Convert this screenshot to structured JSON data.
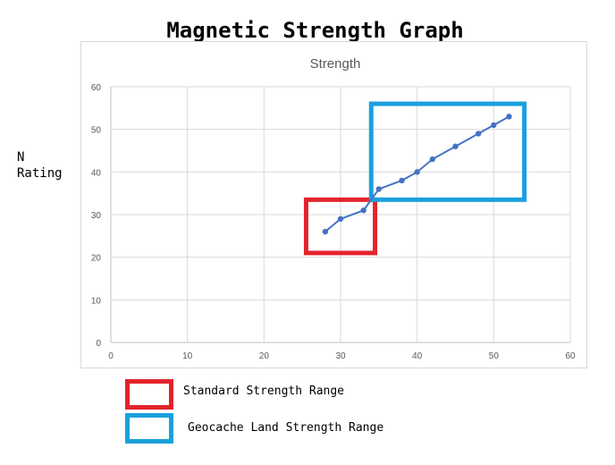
{
  "page": {
    "title": "Magnetic Strength Graph",
    "side_label": "N\nRating"
  },
  "legend": [
    {
      "label": "Standard Strength Range",
      "color": "#e3232c"
    },
    {
      "label": "Geocache Land Strength Range",
      "color": "#1aa0dc"
    }
  ],
  "chart_data": {
    "type": "line",
    "title": "Strength",
    "xlabel": "",
    "ylabel": "",
    "xlim": [
      0,
      60
    ],
    "ylim": [
      0,
      60
    ],
    "x_ticks": [
      0,
      10,
      20,
      30,
      40,
      50,
      60
    ],
    "y_ticks": [
      0,
      10,
      20,
      30,
      40,
      50,
      60
    ],
    "grid": true,
    "line_color": "#4472c4",
    "series": [
      {
        "x": [
          28,
          30,
          33,
          35,
          38,
          40,
          42,
          45,
          48,
          50,
          52
        ],
        "y": [
          26,
          29,
          31,
          36,
          38,
          40,
          43,
          46,
          49,
          51,
          53
        ]
      }
    ],
    "highlight_regions": [
      {
        "legend_index": 0,
        "x_range": [
          25.5,
          34.5
        ],
        "y_range": [
          21,
          33.5
        ]
      },
      {
        "legend_index": 1,
        "x_range": [
          34,
          54
        ],
        "y_range": [
          33.5,
          56
        ]
      }
    ]
  }
}
